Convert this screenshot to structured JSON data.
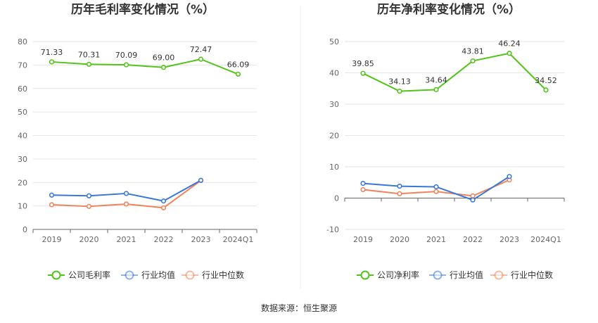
{
  "source": "数据来源：恒生聚源",
  "chart_data": [
    {
      "type": "line",
      "title": "历年毛利率变化情况（%）",
      "categories": [
        "2019",
        "2020",
        "2021",
        "2022",
        "2023",
        "2024Q1"
      ],
      "ylim": [
        0,
        80
      ],
      "yticks": [
        0,
        10,
        20,
        30,
        40,
        50,
        60,
        70,
        80
      ],
      "grid": true,
      "legend_position": "bottom",
      "series": [
        {
          "name": "公司毛利率",
          "color": "#52c41a",
          "values": [
            71.33,
            70.31,
            70.09,
            69.0,
            72.47,
            66.09
          ],
          "labels": [
            "71.33",
            "70.31",
            "70.09",
            "69.00",
            "72.47",
            "66.09"
          ]
        },
        {
          "name": "行业均值",
          "color": "#3a78d8",
          "values": [
            14.6,
            14.3,
            15.3,
            12.1,
            20.9,
            null
          ]
        },
        {
          "name": "行业中位数",
          "color": "#f0845c",
          "values": [
            10.5,
            9.8,
            10.8,
            9.2,
            20.8,
            null
          ]
        }
      ]
    },
    {
      "type": "line",
      "title": "历年净利率变化情况（%）",
      "categories": [
        "2019",
        "2020",
        "2021",
        "2022",
        "2023",
        "2024Q1"
      ],
      "ylim": [
        -10,
        50
      ],
      "yticks": [
        -10,
        0,
        10,
        20,
        30,
        40,
        50
      ],
      "grid": true,
      "legend_position": "bottom",
      "series": [
        {
          "name": "公司净利率",
          "color": "#52c41a",
          "values": [
            39.85,
            34.13,
            34.64,
            43.81,
            46.24,
            34.52
          ],
          "labels": [
            "39.85",
            "34.13",
            "34.64",
            "43.81",
            "46.24",
            "34.52"
          ]
        },
        {
          "name": "行业均值",
          "color": "#3a78d8",
          "values": [
            4.7,
            3.8,
            3.6,
            -0.6,
            6.9,
            null
          ]
        },
        {
          "name": "行业中位数",
          "color": "#f0845c",
          "values": [
            2.7,
            1.4,
            2.1,
            0.7,
            5.8,
            null
          ]
        }
      ]
    }
  ]
}
